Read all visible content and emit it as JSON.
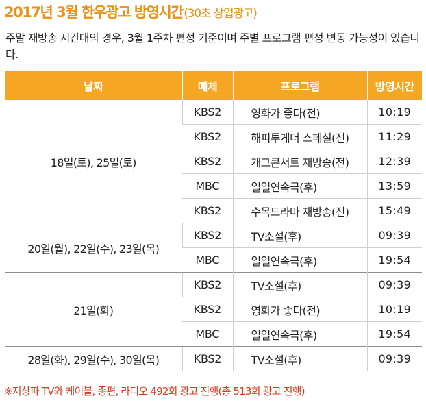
{
  "title": {
    "main": "2017년 3월 한우광고 방영시간",
    "sub": "(30초 상업광고)"
  },
  "description": "주말 재방송 시간대의 경우, 3월 1주차 편성 기준이며 주별 프로그램 편성 변동 가능성이 있습니다.",
  "table": {
    "headers": {
      "date": "날짜",
      "media": "매체",
      "program": "프로그램",
      "time": "방영시간"
    },
    "groups": [
      {
        "date": "18일(토), 25일(토)",
        "rows": [
          {
            "media": "KBS2",
            "program": "영화가 좋다(전)",
            "time": "10:19"
          },
          {
            "media": "KBS2",
            "program": "해피투게더 스페셜(전)",
            "time": "11:29"
          },
          {
            "media": "KBS2",
            "program": "개그콘서트 재방송(전)",
            "time": "12:39"
          },
          {
            "media": "MBC",
            "program": "일일연속극(후)",
            "time": "13:59"
          },
          {
            "media": "KBS2",
            "program": "수목드라마 재방송(전)",
            "time": "15:49"
          }
        ]
      },
      {
        "date": "20일(월), 22일(수), 23일(목)",
        "rows": [
          {
            "media": "KBS2",
            "program": "TV소설(후)",
            "time": "09:39"
          },
          {
            "media": "MBC",
            "program": "일일연속극(후)",
            "time": "19:54"
          }
        ]
      },
      {
        "date": "21일(화)",
        "rows": [
          {
            "media": "KBS2",
            "program": "TV소설(후)",
            "time": "09:39"
          },
          {
            "media": "KBS2",
            "program": "영화가 좋다(전)",
            "time": "10:19"
          },
          {
            "media": "MBC",
            "program": "일일연속극(후)",
            "time": "19:54"
          }
        ]
      },
      {
        "date": "28일(화), 29일(수), 30일(목)",
        "rows": [
          {
            "media": "KBS2",
            "program": "TV소설(후)",
            "time": "09:39"
          }
        ]
      }
    ]
  },
  "note": "※지상파 TV와 케이블, 종편, 라디오 492회 광고 진행(총 513회 광고 진행)",
  "colors": {
    "accent": "#e8921a",
    "header_bg": "#f5a623",
    "note": "#d93a1e"
  }
}
